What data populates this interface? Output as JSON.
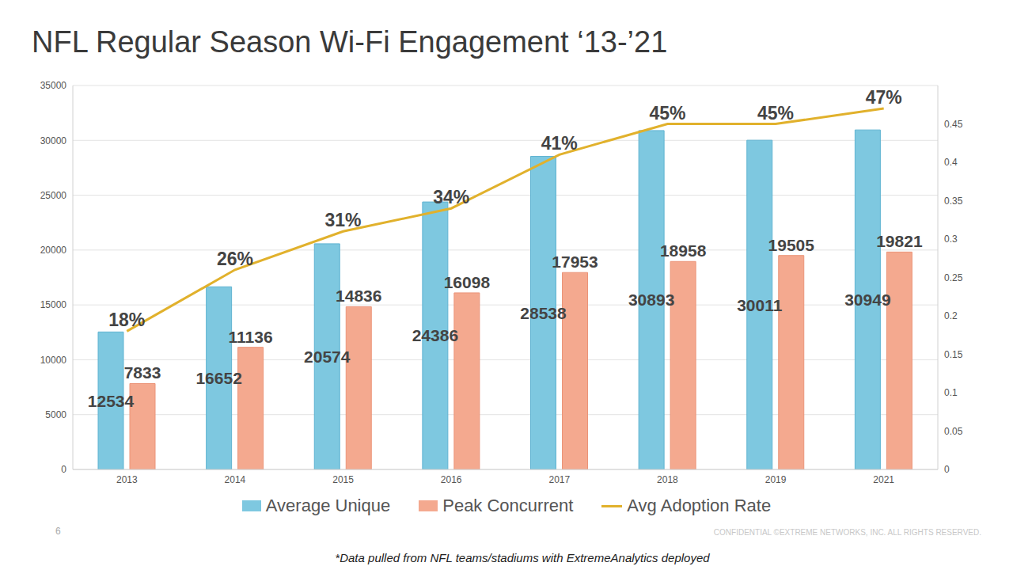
{
  "chart_data": {
    "type": "bar",
    "title": "NFL Regular Season Wi-Fi Engagement ‘13-’21",
    "categories": [
      "2013",
      "2014",
      "2015",
      "2016",
      "2017",
      "2018",
      "2019",
      "2021"
    ],
    "series": [
      {
        "name": "Average Unique",
        "type": "bar",
        "color": "#7ec8e0",
        "values": [
          12534,
          16652,
          20574,
          24386,
          28538,
          30893,
          30011,
          30949
        ]
      },
      {
        "name": "Peak Concurrent",
        "type": "bar",
        "color": "#f4a98f",
        "values": [
          7833,
          11136,
          14836,
          16098,
          17953,
          18958,
          19505,
          19821
        ]
      },
      {
        "name": "Avg Adoption Rate",
        "type": "line",
        "axis": "y2",
        "color": "#e1b12c",
        "values": [
          0.18,
          0.26,
          0.31,
          0.34,
          0.41,
          0.45,
          0.45,
          0.47
        ],
        "value_labels": [
          "18%",
          "26%",
          "31%",
          "34%",
          "41%",
          "45%",
          "45%",
          "47%"
        ]
      }
    ],
    "ylim": [
      0,
      35000
    ],
    "yticks": [
      0,
      5000,
      10000,
      15000,
      20000,
      25000,
      30000,
      35000
    ],
    "y2lim": [
      0,
      0.5
    ],
    "y2ticks": [
      0,
      0.05,
      0.1,
      0.15,
      0.2,
      0.25,
      0.3,
      0.35,
      0.4,
      0.45
    ],
    "grid": true,
    "legend": "bottom",
    "data_labels": true,
    "annotations": [
      "6",
      "CONFIDENTIAL ©EXTREME NETWORKS, INC. ALL RIGHTS RESERVED.",
      "*Data pulled from NFL teams/stadiums with ExtremeAnalytics deployed"
    ]
  }
}
